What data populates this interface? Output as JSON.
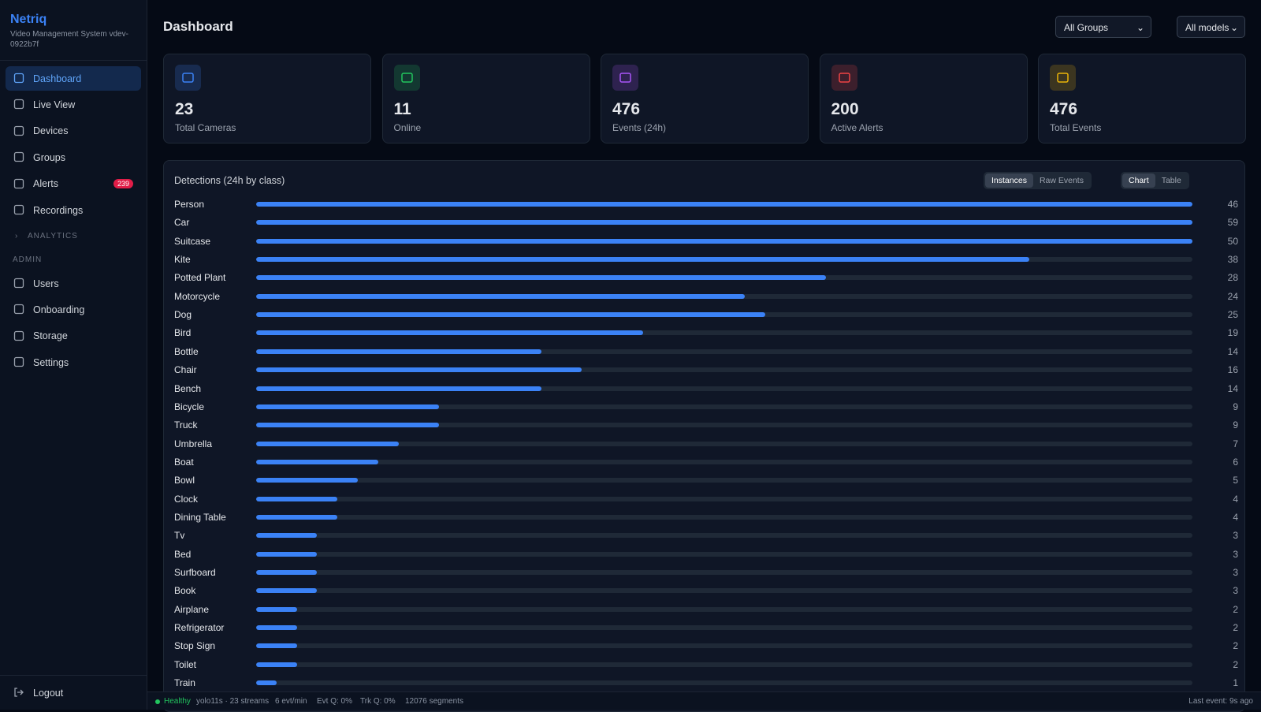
{
  "sidebar": {
    "brand": "Netriq",
    "subtitle": "Video Management System vdev-0922b7f",
    "nav": [
      "Dashboard",
      "Live View",
      "Devices",
      "Groups",
      "Alerts",
      "Recordings"
    ],
    "alerts_badge": 239,
    "analytics": "ANALYTICS",
    "admin_heading": "ADMIN",
    "admin_nav": [
      "Users",
      "Onboarding",
      "Storage",
      "Settings"
    ],
    "logout": "Logout"
  },
  "header": {
    "title": "Dashboard",
    "group_select": "All Groups",
    "model_select": "All models"
  },
  "stats": [
    {
      "value": 23,
      "label": "Total Cameras",
      "color": "#3b82f6"
    },
    {
      "value": 11,
      "label": "Online",
      "color": "#22c55e"
    },
    {
      "value": 476,
      "label": "Events (24h)",
      "color": "#a855f7"
    },
    {
      "value": 200,
      "label": "Active Alerts",
      "color": "#ef4444"
    },
    {
      "value": 476,
      "label": "Total Events",
      "color": "#eab308"
    }
  ],
  "detections": {
    "title": "Detections (24h by class)",
    "modes": [
      "Instances",
      "Raw Events"
    ],
    "views": [
      "Chart",
      "Table"
    ],
    "color": "#3b82f6",
    "xlim": [
      0,
      46
    ],
    "categories": [
      "Person",
      "Car",
      "Suitcase",
      "Kite",
      "Potted Plant",
      "Motorcycle",
      "Dog",
      "Bird",
      "Bottle",
      "Chair",
      "Bench",
      "Bicycle",
      "Truck",
      "Umbrella",
      "Boat",
      "Bowl",
      "Clock",
      "Dining Table",
      "Tv",
      "Bed",
      "Surfboard",
      "Book",
      "Airplane",
      "Refrigerator",
      "Stop Sign",
      "Toilet",
      "Train"
    ],
    "values": [
      46,
      59,
      50,
      38,
      28,
      24,
      25,
      19,
      14,
      16,
      14,
      9,
      9,
      7,
      6,
      5,
      4,
      4,
      3,
      3,
      3,
      3,
      2,
      2,
      2,
      2,
      1
    ]
  },
  "status": {
    "health": "Healthy",
    "items": [
      "yolo11s · 23 streams",
      "6 evt/min",
      "Evt Q: 0%",
      "Trk Q: 0%",
      "12076 segments"
    ],
    "last_event": "Last event: 9s ago"
  }
}
